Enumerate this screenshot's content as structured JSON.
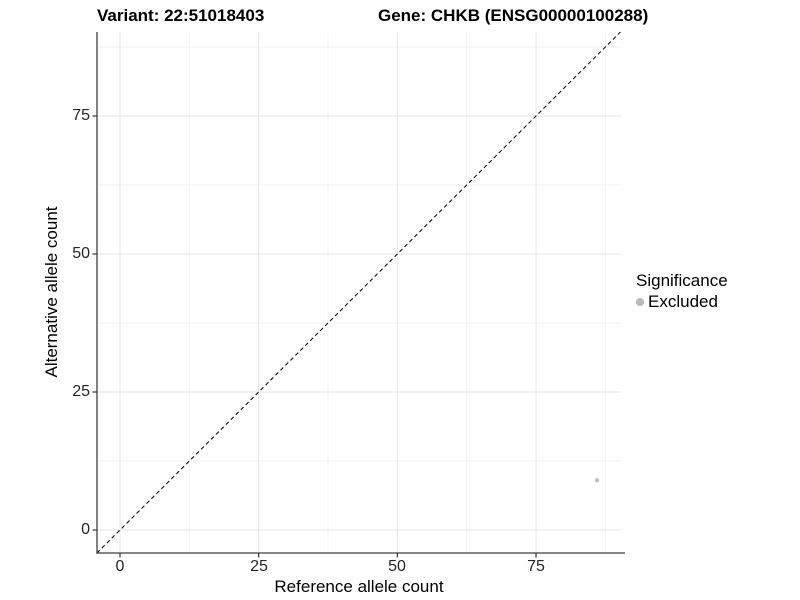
{
  "titles": {
    "variant": "Variant: 22:51018403",
    "gene": "Gene: CHKB (ENSG00000100288)"
  },
  "axes": {
    "x": {
      "label": "Reference allele count",
      "ticks": [
        "0",
        "25",
        "50",
        "75"
      ]
    },
    "y": {
      "label": "Alternative allele count",
      "ticks": [
        "0",
        "25",
        "50",
        "75"
      ]
    }
  },
  "legend": {
    "title": "Significance",
    "items": [
      {
        "label": "Excluded",
        "color": "#b9b9b9",
        "shape": "circle"
      }
    ]
  },
  "colors": {
    "background": "#ffffff",
    "axis_line": "#3f3f3f",
    "tick_mark": "#333333",
    "grid_major": "#e6e6e6",
    "grid_minor": "#f2f2f2",
    "identity_line": "#111111",
    "point": "#c1c1c1",
    "text": "#000000"
  },
  "chart_data": {
    "type": "scatter",
    "title": "Variant: 22:51018403 | Gene: CHKB (ENSG00000100288)",
    "xlabel": "Reference allele count",
    "ylabel": "Alternative allele count",
    "x_ticks": [
      0,
      25,
      50,
      75
    ],
    "y_ticks": [
      0,
      25,
      50,
      75
    ],
    "x_minor_ticks": [
      12.5,
      37.5,
      62.5,
      87.5
    ],
    "y_minor_ticks": [
      12.5,
      37.5,
      62.5,
      87.5
    ],
    "xlim": [
      -4.2,
      90.5
    ],
    "ylim": [
      -4.2,
      90.5
    ],
    "grid": true,
    "legend_position": "right",
    "series": [
      {
        "name": "Excluded",
        "color": "#c1c1c1",
        "points": [
          {
            "x": 86,
            "y": 9
          }
        ]
      }
    ],
    "reference_line": {
      "kind": "identity",
      "slope": 1,
      "intercept": 0,
      "style": "dashed",
      "color": "#111111"
    }
  }
}
